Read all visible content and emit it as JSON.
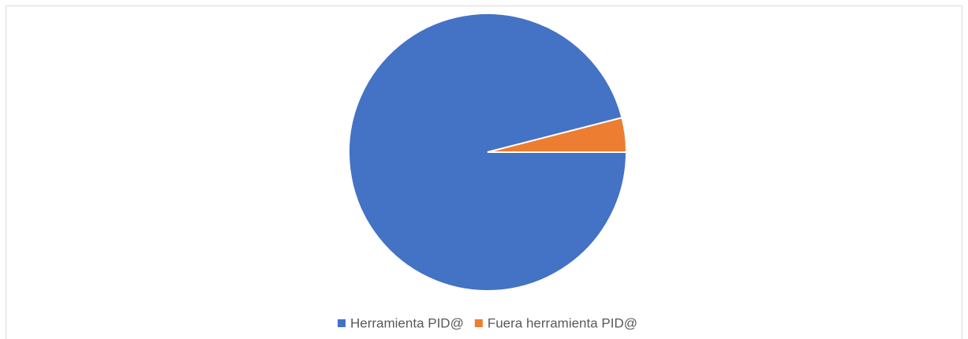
{
  "chart_data": {
    "type": "pie",
    "categories": [
      "Herramienta PID@",
      "Fuera herramienta PID@"
    ],
    "values": [
      96,
      4
    ],
    "colors": [
      "#4472c4",
      "#ed7d31"
    ],
    "legend": "bottom"
  }
}
